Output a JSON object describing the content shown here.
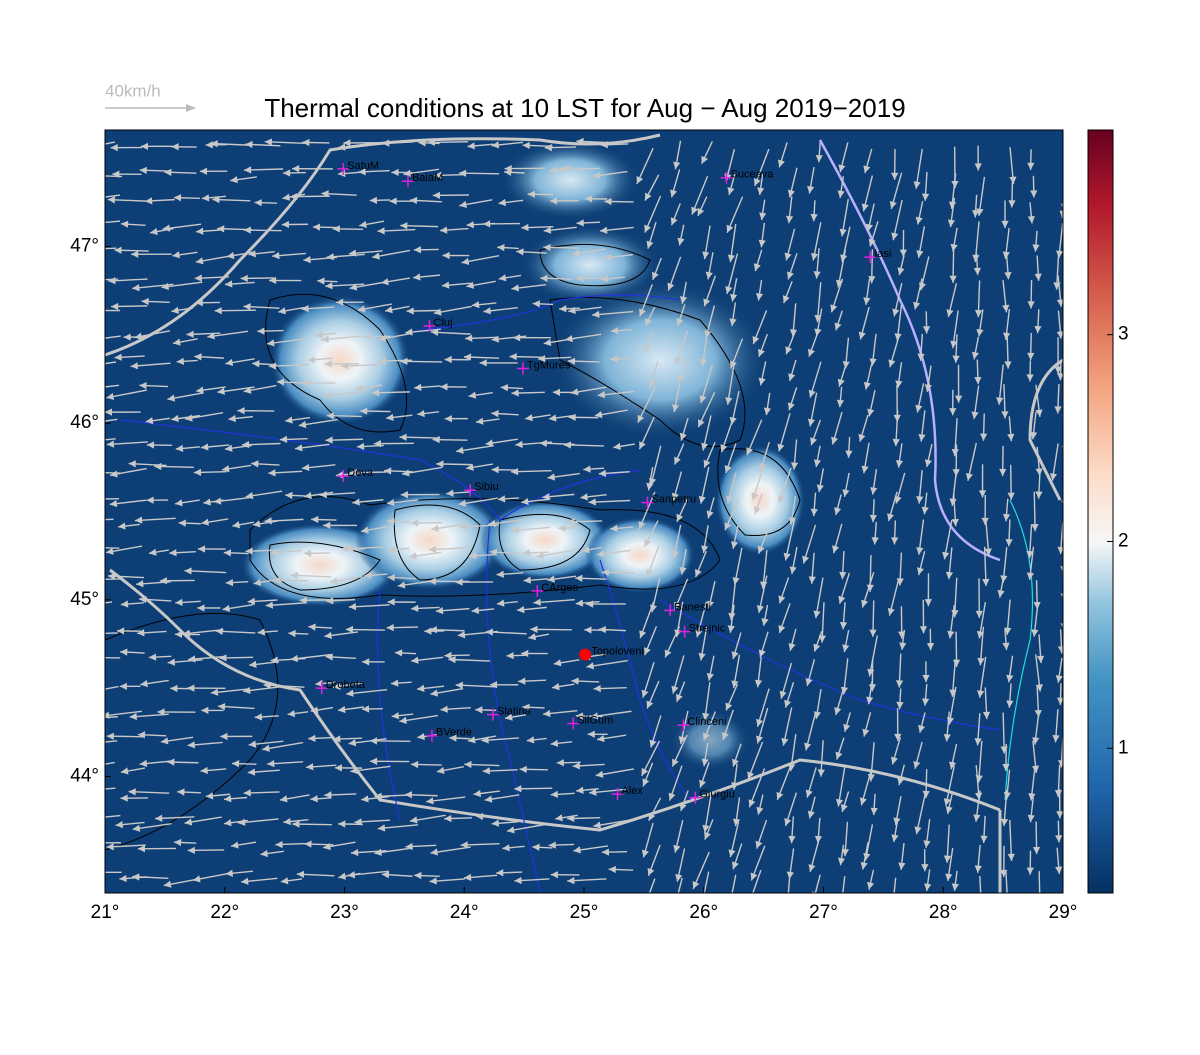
{
  "map": {
    "title": "Thermal conditions at 10 LST for Aug − Aug  2019−2019",
    "speed_label": "40km/h",
    "xlim": [
      21,
      29
    ],
    "ylim": [
      43.34,
      47.66
    ],
    "xticks": [
      {
        "value": 21,
        "label": "21°"
      },
      {
        "value": 22,
        "label": "22°"
      },
      {
        "value": 23,
        "label": "23°"
      },
      {
        "value": 24,
        "label": "24°"
      },
      {
        "value": 25,
        "label": "25°"
      },
      {
        "value": 26,
        "label": "26°"
      },
      {
        "value": 27,
        "label": "27°"
      },
      {
        "value": 28,
        "label": "28°"
      },
      {
        "value": 29,
        "label": "29°"
      }
    ],
    "yticks": [
      {
        "value": 44,
        "label": "44°"
      },
      {
        "value": 45,
        "label": "45°"
      },
      {
        "value": 46,
        "label": "46°"
      },
      {
        "value": 47,
        "label": "47°"
      }
    ],
    "colorbar": {
      "lim": [
        0.3,
        3.99
      ],
      "ticks": [
        1,
        2,
        3
      ]
    },
    "stations": [
      {
        "name": "SatuM",
        "lon": 22.99,
        "lat": 47.44
      },
      {
        "name": "BaiaM",
        "lon": 23.53,
        "lat": 47.37
      },
      {
        "name": "Suceava",
        "lon": 26.19,
        "lat": 47.39
      },
      {
        "name": "Iasi",
        "lon": 27.39,
        "lat": 46.94
      },
      {
        "name": "Cluj",
        "lon": 23.71,
        "lat": 46.55
      },
      {
        "name": "TgMures",
        "lon": 24.49,
        "lat": 46.31
      },
      {
        "name": "Deva",
        "lon": 22.99,
        "lat": 45.7
      },
      {
        "name": "Sibiu",
        "lon": 24.05,
        "lat": 45.62
      },
      {
        "name": "Sanpetru",
        "lon": 25.53,
        "lat": 45.55
      },
      {
        "name": "CArges",
        "lon": 24.61,
        "lat": 45.05
      },
      {
        "name": "Banesti",
        "lon": 25.72,
        "lat": 44.94
      },
      {
        "name": "Strejnic",
        "lon": 25.84,
        "lat": 44.82
      },
      {
        "name": "Drobeta",
        "lon": 22.81,
        "lat": 44.5
      },
      {
        "name": "Slatina",
        "lon": 24.24,
        "lat": 44.35
      },
      {
        "name": "SilGum",
        "lon": 24.91,
        "lat": 44.3
      },
      {
        "name": "BVerde",
        "lon": 23.73,
        "lat": 44.23
      },
      {
        "name": "Clinceni",
        "lon": 25.83,
        "lat": 44.29
      },
      {
        "name": "Alex",
        "lon": 25.28,
        "lat": 43.9
      },
      {
        "name": "Giurgiu",
        "lon": 25.93,
        "lat": 43.88
      }
    ],
    "site": {
      "name": "Topoloveni",
      "lon": 25.01,
      "lat": 44.69
    }
  }
}
